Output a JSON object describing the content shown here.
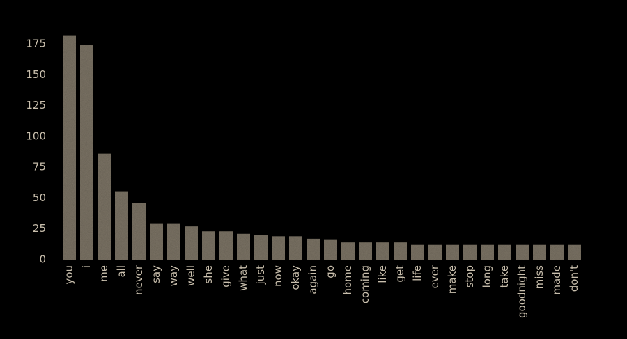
{
  "chart_data": {
    "type": "bar",
    "categories": [
      "you",
      "i",
      "me",
      "all",
      "never",
      "say",
      "way",
      "well",
      "she",
      "give",
      "what",
      "just",
      "now",
      "okay",
      "again",
      "go",
      "home",
      "coming",
      "like",
      "get",
      "life",
      "ever",
      "make",
      "stop",
      "long",
      "take",
      "goodnight",
      "miss",
      "made",
      "don't"
    ],
    "values": [
      182,
      174,
      86,
      55,
      46,
      29,
      29,
      27,
      23,
      23,
      21,
      20,
      19,
      19,
      17,
      16,
      14,
      14,
      14,
      14,
      12,
      12,
      12,
      12,
      12,
      12,
      12,
      12,
      12,
      12
    ],
    "color": "#7d7566",
    "ylim": [
      0,
      185
    ],
    "yticks": [
      0,
      25,
      50,
      75,
      100,
      125,
      150,
      175
    ],
    "grid": false
  }
}
